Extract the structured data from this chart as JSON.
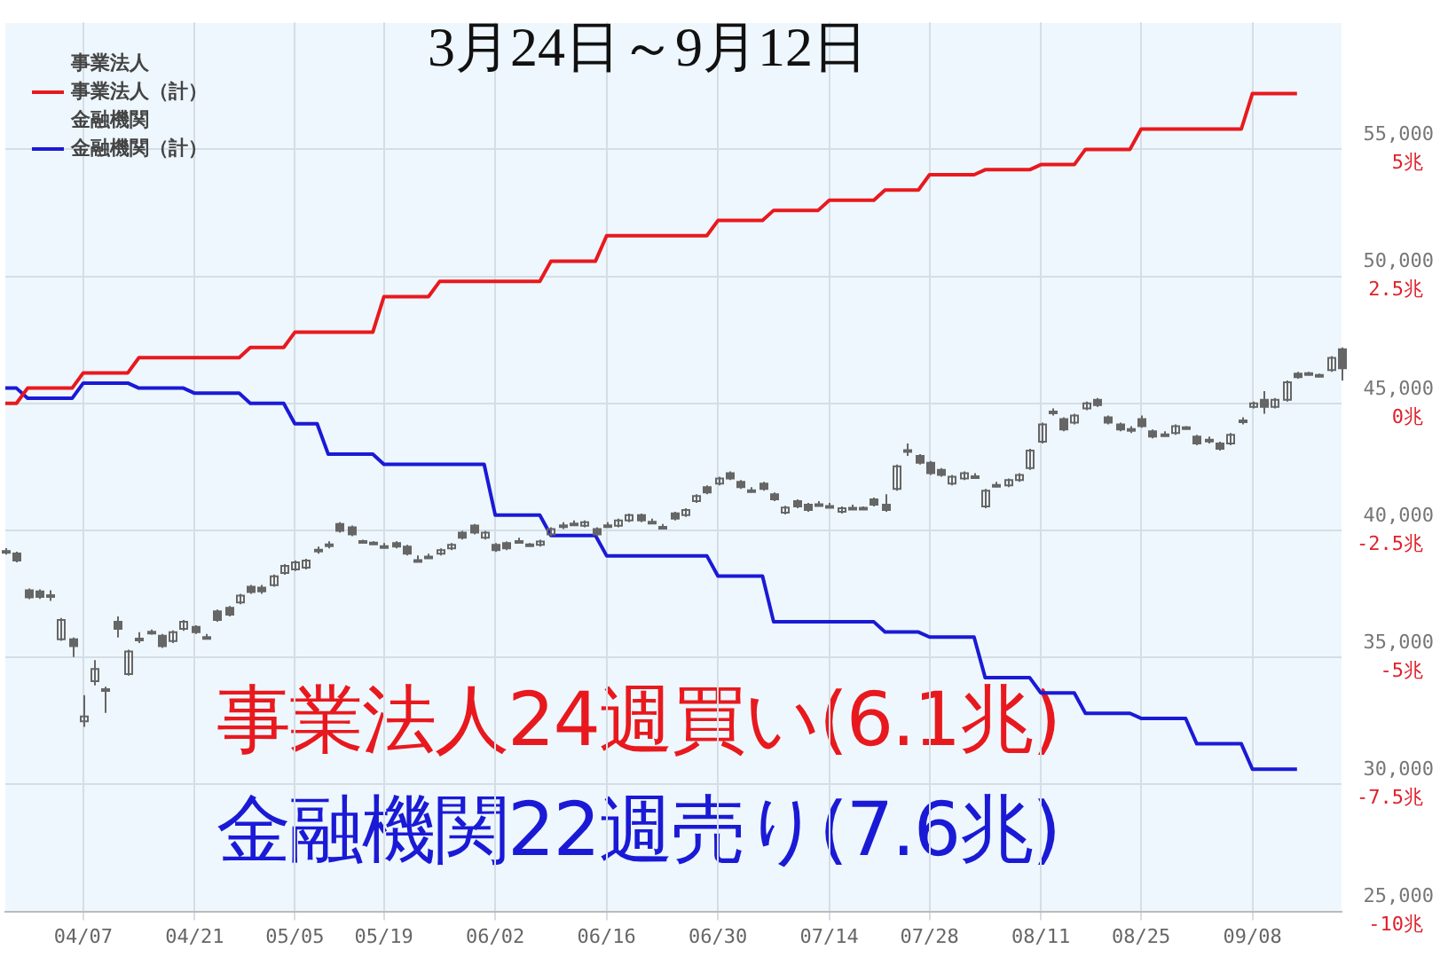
{
  "chart_data": {
    "type": "candlestick",
    "title": "3月24日～9月12日",
    "categories": [
      null,
      null,
      null,
      null,
      null,
      null,
      null,
      "04/07",
      null,
      null,
      null,
      null,
      null,
      null,
      null,
      null,
      null,
      "04/21",
      null,
      null,
      null,
      null,
      null,
      null,
      null,
      null,
      "05/05",
      null,
      null,
      null,
      null,
      null,
      null,
      null,
      "05/19",
      null,
      null,
      null,
      null,
      null,
      null,
      null,
      null,
      null,
      "06/02",
      null,
      null,
      null,
      null,
      null,
      null,
      null,
      null,
      null,
      "06/16",
      null,
      null,
      null,
      null,
      null,
      null,
      null,
      null,
      null,
      "06/30",
      null,
      null,
      null,
      null,
      null,
      null,
      null,
      null,
      null,
      "07/14",
      null,
      null,
      null,
      null,
      null,
      null,
      null,
      null,
      "07/28",
      null,
      null,
      null,
      null,
      null,
      null,
      null,
      null,
      null,
      "08/11",
      null,
      null,
      null,
      null,
      null,
      null,
      null,
      null,
      "08/25",
      null,
      null,
      null,
      null,
      null,
      null,
      null,
      null,
      null,
      "09/08",
      null,
      null,
      null,
      null,
      null,
      null,
      null,
      null
    ],
    "color": "#666666",
    "ohlc": [
      [
        39170,
        39300,
        39050,
        39190
      ],
      [
        39090,
        39160,
        38740,
        38810
      ],
      [
        37640,
        37710,
        37290,
        37360
      ],
      [
        37600,
        37680,
        37300,
        37380
      ],
      [
        37430,
        37640,
        37220,
        37450
      ],
      [
        35710,
        36550,
        35650,
        36470
      ],
      [
        35710,
        35780,
        35020,
        35440
      ],
      [
        32480,
        33510,
        32270,
        32680
      ],
      [
        34060,
        34890,
        33900,
        34540
      ],
      [
        33720,
        33850,
        32820,
        33750
      ],
      [
        36400,
        36610,
        35780,
        36120
      ],
      [
        34340,
        35300,
        34280,
        35230
      ],
      [
        35710,
        35990,
        35570,
        35740
      ],
      [
        35990,
        36100,
        35900,
        36010
      ],
      [
        35850,
        35920,
        35370,
        35440
      ],
      [
        35640,
        36060,
        35570,
        35990
      ],
      [
        36120,
        36470,
        36050,
        36400
      ],
      [
        36200,
        36260,
        35920,
        35990
      ],
      [
        35780,
        35920,
        35710,
        35800
      ],
      [
        36810,
        36880,
        36400,
        36470
      ],
      [
        36950,
        37020,
        36610,
        36680
      ],
      [
        37160,
        37500,
        37090,
        37430
      ],
      [
        37780,
        37850,
        37500,
        37570
      ],
      [
        37750,
        37850,
        37500,
        37600
      ],
      [
        37840,
        38260,
        37780,
        38190
      ],
      [
        38320,
        38670,
        38250,
        38600
      ],
      [
        38460,
        38810,
        38400,
        38740
      ],
      [
        38530,
        38880,
        38460,
        38810
      ],
      [
        39220,
        39360,
        39080,
        39240
      ],
      [
        39430,
        39570,
        39290,
        39450
      ],
      [
        40250,
        40320,
        39910,
        39980
      ],
      [
        40120,
        40190,
        39770,
        39840
      ],
      [
        39560,
        39630,
        39490,
        39580
      ],
      [
        39500,
        39570,
        39430,
        39520
      ],
      [
        39360,
        39500,
        39290,
        39380
      ],
      [
        39500,
        39570,
        39290,
        39360
      ],
      [
        39360,
        39430,
        39010,
        39080
      ],
      [
        38810,
        39010,
        38810,
        38830
      ],
      [
        38950,
        39080,
        38880,
        38970
      ],
      [
        39080,
        39290,
        39010,
        39220
      ],
      [
        39290,
        39500,
        39220,
        39430
      ],
      [
        39910,
        39980,
        39640,
        39710
      ],
      [
        40190,
        40250,
        39840,
        39910
      ],
      [
        39710,
        39980,
        39640,
        39910
      ],
      [
        39430,
        39500,
        39150,
        39220
      ],
      [
        39500,
        39560,
        39220,
        39290
      ],
      [
        39560,
        39710,
        39490,
        39580
      ],
      [
        39430,
        39500,
        39360,
        39450
      ],
      [
        39430,
        39630,
        39360,
        39560
      ],
      [
        39840,
        40120,
        39770,
        40050
      ],
      [
        40180,
        40320,
        40050,
        40200
      ],
      [
        40250,
        40390,
        40180,
        40270
      ],
      [
        40180,
        40390,
        40120,
        40320
      ],
      [
        40050,
        40120,
        39770,
        39840
      ],
      [
        40180,
        40320,
        40120,
        40200
      ],
      [
        40180,
        40460,
        40120,
        40390
      ],
      [
        40390,
        40660,
        40320,
        40600
      ],
      [
        40600,
        40660,
        40320,
        40390
      ],
      [
        40320,
        40460,
        40250,
        40340
      ],
      [
        40120,
        40250,
        40050,
        40140
      ],
      [
        40670,
        40730,
        40390,
        40460
      ],
      [
        40600,
        40870,
        40530,
        40800
      ],
      [
        41150,
        41420,
        41080,
        41350
      ],
      [
        41700,
        41770,
        41420,
        41490
      ],
      [
        41840,
        42110,
        41770,
        42040
      ],
      [
        42250,
        42320,
        41980,
        42040
      ],
      [
        41910,
        41980,
        41630,
        41700
      ],
      [
        41560,
        41700,
        41490,
        41580
      ],
      [
        41840,
        41910,
        41560,
        41630
      ],
      [
        41420,
        41490,
        41150,
        41220
      ],
      [
        40700,
        40970,
        40630,
        40900
      ],
      [
        41150,
        41220,
        40870,
        40940
      ],
      [
        41010,
        41080,
        40730,
        40800
      ],
      [
        41010,
        41150,
        40940,
        41030
      ],
      [
        40940,
        41080,
        40870,
        40960
      ],
      [
        40730,
        40940,
        40660,
        40870
      ],
      [
        40870,
        41010,
        40800,
        40890
      ],
      [
        40870,
        40940,
        40800,
        40890
      ],
      [
        41220,
        41290,
        40940,
        41010
      ],
      [
        41010,
        41420,
        40730,
        40800
      ],
      [
        41630,
        42590,
        41560,
        42520
      ],
      [
        43140,
        43420,
        42930,
        43160
      ],
      [
        42930,
        43000,
        42590,
        42660
      ],
      [
        42660,
        42730,
        42180,
        42250
      ],
      [
        42380,
        42450,
        42110,
        42180
      ],
      [
        41840,
        42180,
        41770,
        42110
      ],
      [
        42040,
        42320,
        41980,
        42250
      ],
      [
        42110,
        42250,
        42040,
        42130
      ],
      [
        40940,
        41630,
        40870,
        41560
      ],
      [
        41770,
        41910,
        41700,
        41790
      ],
      [
        41770,
        42040,
        41700,
        41980
      ],
      [
        41980,
        42250,
        41910,
        42180
      ],
      [
        42450,
        43210,
        42380,
        43140
      ],
      [
        43490,
        44240,
        43420,
        44170
      ],
      [
        44660,
        44800,
        44520,
        44680
      ],
      [
        44380,
        44450,
        43900,
        43970
      ],
      [
        44240,
        44590,
        44170,
        44520
      ],
      [
        44800,
        45070,
        44730,
        45000
      ],
      [
        45140,
        45210,
        44860,
        44930
      ],
      [
        44450,
        44520,
        44170,
        44240
      ],
      [
        44170,
        44240,
        43900,
        43970
      ],
      [
        43970,
        44100,
        43830,
        43990
      ],
      [
        44380,
        44520,
        44040,
        44100
      ],
      [
        43900,
        43970,
        43620,
        43690
      ],
      [
        43760,
        43900,
        43690,
        43780
      ],
      [
        43830,
        44170,
        43760,
        44100
      ],
      [
        44040,
        44100,
        43970,
        44060
      ],
      [
        43690,
        43760,
        43350,
        43420
      ],
      [
        43550,
        43690,
        43420,
        43570
      ],
      [
        43420,
        43490,
        43140,
        43210
      ],
      [
        43420,
        43830,
        43350,
        43760
      ],
      [
        44310,
        44450,
        44170,
        44330
      ],
      [
        44860,
        45070,
        44800,
        45000
      ],
      [
        45140,
        45480,
        44590,
        44860
      ],
      [
        44860,
        45210,
        44800,
        45140
      ],
      [
        45140,
        45900,
        45070,
        45830
      ],
      [
        46170,
        46240,
        45970,
        46030
      ],
      [
        46170,
        46240,
        46100,
        46190
      ],
      [
        46100,
        46170,
        46030,
        46120
      ],
      [
        46310,
        46860,
        46240,
        46790
      ],
      [
        47130,
        47200,
        45900,
        46380
      ]
    ],
    "series": [
      {
        "name": "事業法人（計）",
        "type": "line",
        "axis": "y2",
        "color": "#e8191e",
        "values": [
          0,
          0,
          0.3,
          0.3,
          0.3,
          0.3,
          0.3,
          0.6,
          0.6,
          0.6,
          0.6,
          0.6,
          0.9,
          0.9,
          0.9,
          0.9,
          0.9,
          0.9,
          0.9,
          0.9,
          0.9,
          0.9,
          1.1,
          1.1,
          1.1,
          1.1,
          1.4,
          1.4,
          1.4,
          1.4,
          1.4,
          1.4,
          1.4,
          1.4,
          2.1,
          2.1,
          2.1,
          2.1,
          2.1,
          2.4,
          2.4,
          2.4,
          2.4,
          2.4,
          2.4,
          2.4,
          2.4,
          2.4,
          2.4,
          2.8,
          2.8,
          2.8,
          2.8,
          2.8,
          3.3,
          3.3,
          3.3,
          3.3,
          3.3,
          3.3,
          3.3,
          3.3,
          3.3,
          3.3,
          3.6,
          3.6,
          3.6,
          3.6,
          3.6,
          3.8,
          3.8,
          3.8,
          3.8,
          3.8,
          4.0,
          4.0,
          4.0,
          4.0,
          4.0,
          4.2,
          4.2,
          4.2,
          4.2,
          4.5,
          4.5,
          4.5,
          4.5,
          4.5,
          4.6,
          4.6,
          4.6,
          4.6,
          4.6,
          4.7,
          4.7,
          4.7,
          4.7,
          5.0,
          5.0,
          5.0,
          5.0,
          5.0,
          5.4,
          5.4,
          5.4,
          5.4,
          5.4,
          5.4,
          5.4,
          5.4,
          5.4,
          5.4,
          6.1,
          6.1,
          6.1,
          6.1,
          6.1,
          null,
          null,
          null,
          null
        ]
      },
      {
        "name": "金融機関（計）",
        "type": "line",
        "axis": "y2",
        "color": "#1a1ad6",
        "values": [
          0.3,
          0.3,
          0.1,
          0.1,
          0.1,
          0.1,
          0.1,
          0.4,
          0.4,
          0.4,
          0.4,
          0.4,
          0.3,
          0.3,
          0.3,
          0.3,
          0.3,
          0.2,
          0.2,
          0.2,
          0.2,
          0.2,
          0.0,
          0.0,
          0.0,
          0.0,
          -0.4,
          -0.4,
          -0.4,
          -1.0,
          -1.0,
          -1.0,
          -1.0,
          -1.0,
          -1.2,
          -1.2,
          -1.2,
          -1.2,
          -1.2,
          -1.2,
          -1.2,
          -1.2,
          -1.2,
          -1.2,
          -2.2,
          -2.2,
          -2.2,
          -2.2,
          -2.2,
          -2.6,
          -2.6,
          -2.6,
          -2.6,
          -2.6,
          -3.0,
          -3.0,
          -3.0,
          -3.0,
          -3.0,
          -3.0,
          -3.0,
          -3.0,
          -3.0,
          -3.0,
          -3.4,
          -3.4,
          -3.4,
          -3.4,
          -3.4,
          -4.3,
          -4.3,
          -4.3,
          -4.3,
          -4.3,
          -4.3,
          -4.3,
          -4.3,
          -4.3,
          -4.3,
          -4.5,
          -4.5,
          -4.5,
          -4.5,
          -4.6,
          -4.6,
          -4.6,
          -4.6,
          -4.6,
          -5.4,
          -5.4,
          -5.4,
          -5.4,
          -5.4,
          -5.7,
          -5.7,
          -5.7,
          -5.7,
          -6.1,
          -6.1,
          -6.1,
          -6.1,
          -6.1,
          -6.2,
          -6.2,
          -6.2,
          -6.2,
          -6.2,
          -6.7,
          -6.7,
          -6.7,
          -6.7,
          -6.7,
          -7.2,
          -7.2,
          -7.2,
          -7.2,
          -7.2,
          null,
          null,
          null,
          null
        ]
      }
    ],
    "ylim": [
      25000,
      60000
    ],
    "yticks": [
      {
        "value": 25000,
        "label": "25,000"
      },
      {
        "value": 30000,
        "label": "30,000"
      },
      {
        "value": 35000,
        "label": "35,000"
      },
      {
        "value": 40000,
        "label": "40,000"
      },
      {
        "value": 45000,
        "label": "45,000"
      },
      {
        "value": 50000,
        "label": "50,000"
      },
      {
        "value": 55000,
        "label": "55,000"
      }
    ],
    "y2lim": [
      -10,
      7.5
    ],
    "y2ticks": [
      {
        "value": -10,
        "label": "-10兆"
      },
      {
        "value": -7.5,
        "label": "-7.5兆"
      },
      {
        "value": -5,
        "label": "-5兆"
      },
      {
        "value": -2.5,
        "label": "-2.5兆"
      },
      {
        "value": 0,
        "label": "0兆"
      },
      {
        "value": 2.5,
        "label": "2.5兆"
      },
      {
        "value": 5,
        "label": "5兆"
      }
    ],
    "annotations": [
      "事業法人",
      "金融機関",
      "事業法人24週買い(6.1兆)",
      "金融機関22週売り(7.6兆)"
    ],
    "grid": true,
    "legend": "top left",
    "marker": "none"
  }
}
